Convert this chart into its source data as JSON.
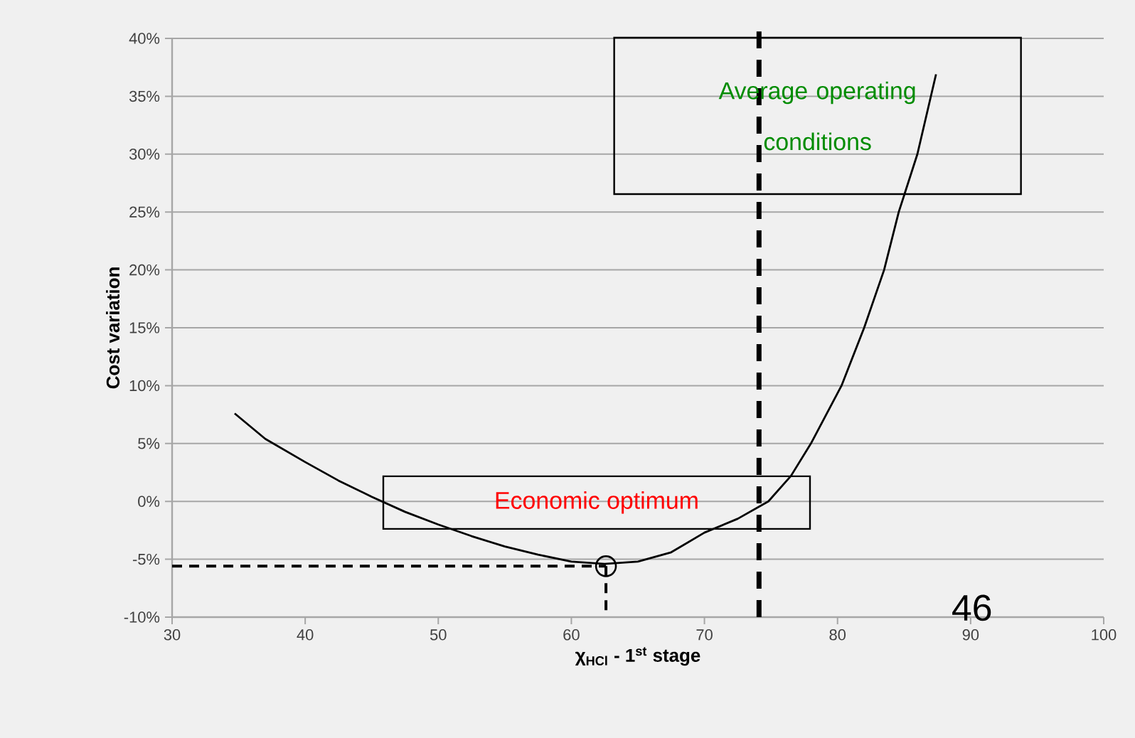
{
  "chart_data": {
    "type": "line",
    "xlabel": "χ$_{HCl}$ - 1$^{st}$ stage",
    "ylabel": "Cost variation",
    "xlim": [
      30,
      100
    ],
    "xticks": [
      30,
      40,
      50,
      60,
      70,
      80,
      90,
      100
    ],
    "ylim": [
      -10,
      40
    ],
    "yticks": [
      {
        "value": -10,
        "label": "-10%"
      },
      {
        "value": -5,
        "label": "-5%"
      },
      {
        "value": 0,
        "label": "0%"
      },
      {
        "value": 5,
        "label": "5%"
      },
      {
        "value": 10,
        "label": "10%"
      },
      {
        "value": 15,
        "label": "15%"
      },
      {
        "value": 20,
        "label": "20%"
      },
      {
        "value": 25,
        "label": "25%"
      },
      {
        "value": 30,
        "label": "30%"
      },
      {
        "value": 35,
        "label": "35%"
      },
      {
        "value": 40,
        "label": "40%"
      }
    ],
    "grid": "y",
    "series": [
      {
        "color": "#000000",
        "line_style": "solid",
        "x": [
          34.7,
          37,
          40,
          42.5,
          45,
          47.5,
          50,
          52.5,
          55,
          57.5,
          60,
          62.5,
          65,
          67.5,
          70,
          72.5,
          74.8,
          76.5,
          78,
          80.3,
          82,
          83.5,
          84.6,
          86,
          87.4
        ],
        "values": [
          7.6,
          5.4,
          3.4,
          1.8,
          0.4,
          -0.9,
          -2.0,
          -3.0,
          -3.9,
          -4.6,
          -5.2,
          -5.4,
          -5.2,
          -4.4,
          -2.7,
          -1.5,
          0,
          2.2,
          5,
          10,
          15,
          20,
          25,
          30,
          36.9
        ]
      },
      {
        "type": "line",
        "color": "#000000",
        "line_style": "dashed",
        "x": [
          30,
          62.6
        ],
        "values": [
          -5.6,
          -5.6
        ]
      },
      {
        "type": "line",
        "color": "#000000",
        "line_style": "dashed",
        "x": [
          62.6,
          62.6
        ],
        "values": [
          -5.6,
          -10
        ]
      },
      {
        "type": "scatter",
        "color": "#000000",
        "marker": "circle",
        "x": [
          62.6
        ],
        "values": [
          -5.6
        ]
      }
    ],
    "ref_lines": [
      {
        "axis": "x",
        "value": 74.1,
        "color": "#000000",
        "line_style": "dashed"
      }
    ],
    "annotations": [
      "Average operating conditions",
      "Economic optimum",
      "46"
    ]
  }
}
